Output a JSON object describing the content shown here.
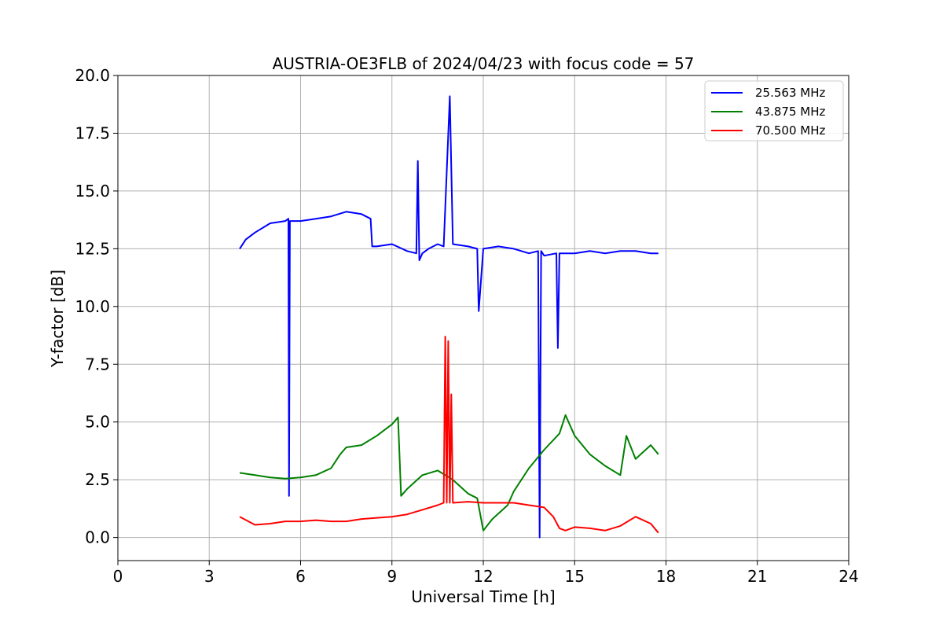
{
  "chart_data": {
    "type": "line",
    "title": "AUSTRIA-OE3FLB of 2024/04/23 with focus code = 57",
    "xlabel": "Universal Time [h]",
    "ylabel": "Y-factor [dB]",
    "xlim": [
      0,
      24
    ],
    "ylim": [
      -1.0,
      20.0
    ],
    "xticks": [
      0,
      3,
      6,
      9,
      12,
      15,
      18,
      21,
      24
    ],
    "xtick_labels": [
      "0",
      "3",
      "6",
      "9",
      "12",
      "15",
      "18",
      "21",
      "24"
    ],
    "yticks": [
      0.0,
      2.5,
      5.0,
      7.5,
      10.0,
      12.5,
      15.0,
      17.5,
      20.0
    ],
    "ytick_labels": [
      "0.0",
      "2.5",
      "5.0",
      "7.5",
      "10.0",
      "12.5",
      "15.0",
      "17.5",
      "20.0"
    ],
    "grid": true,
    "legend_position": "top-right",
    "series": [
      {
        "name": "25.563 MHz",
        "color": "#0000ff",
        "x": [
          4.0,
          4.2,
          4.5,
          5.0,
          5.5,
          5.6,
          5.62,
          5.65,
          6.0,
          6.5,
          7.0,
          7.5,
          8.0,
          8.3,
          8.35,
          8.5,
          9.0,
          9.5,
          9.8,
          9.85,
          9.9,
          10.0,
          10.2,
          10.5,
          10.7,
          10.9,
          11.0,
          11.5,
          11.8,
          11.85,
          12.0,
          12.5,
          13.0,
          13.5,
          13.8,
          13.85,
          13.9,
          14.0,
          14.4,
          14.45,
          14.5,
          15.0,
          15.5,
          16.0,
          16.5,
          17.0,
          17.5,
          17.75
        ],
        "y": [
          12.5,
          12.9,
          13.2,
          13.6,
          13.7,
          13.8,
          1.8,
          13.7,
          13.7,
          13.8,
          13.9,
          14.1,
          14.0,
          13.8,
          12.6,
          12.6,
          12.7,
          12.4,
          12.3,
          16.3,
          12.0,
          12.3,
          12.5,
          12.7,
          12.6,
          19.1,
          12.7,
          12.6,
          12.5,
          9.8,
          12.5,
          12.6,
          12.5,
          12.3,
          12.4,
          0.0,
          12.4,
          12.2,
          12.3,
          8.2,
          12.3,
          12.3,
          12.4,
          12.3,
          12.4,
          12.4,
          12.3,
          12.3
        ]
      },
      {
        "name": "43.875 MHz",
        "color": "#008000",
        "x": [
          4.0,
          4.5,
          5.0,
          5.5,
          6.0,
          6.5,
          7.0,
          7.3,
          7.5,
          8.0,
          8.5,
          9.0,
          9.2,
          9.3,
          9.5,
          10.0,
          10.5,
          11.0,
          11.5,
          11.8,
          12.0,
          12.3,
          12.8,
          13.0,
          13.5,
          14.0,
          14.5,
          14.7,
          15.0,
          15.5,
          16.0,
          16.5,
          16.7,
          17.0,
          17.5,
          17.75
        ],
        "y": [
          2.8,
          2.7,
          2.6,
          2.55,
          2.6,
          2.7,
          3.0,
          3.6,
          3.9,
          4.0,
          4.4,
          4.9,
          5.2,
          1.8,
          2.1,
          2.7,
          2.9,
          2.5,
          1.9,
          1.7,
          0.3,
          0.8,
          1.4,
          2.0,
          3.0,
          3.8,
          4.5,
          5.3,
          4.4,
          3.6,
          3.1,
          2.7,
          4.4,
          3.4,
          4.0,
          3.6
        ]
      },
      {
        "name": "70.500 MHz",
        "color": "#ff0000",
        "x": [
          4.0,
          4.5,
          5.0,
          5.5,
          6.0,
          6.5,
          7.0,
          7.5,
          8.0,
          8.5,
          9.0,
          9.5,
          10.0,
          10.5,
          10.7,
          10.75,
          10.8,
          10.85,
          10.9,
          10.95,
          11.0,
          11.5,
          12.0,
          12.5,
          13.0,
          13.5,
          14.0,
          14.3,
          14.5,
          14.7,
          15.0,
          15.5,
          16.0,
          16.5,
          17.0,
          17.5,
          17.75
        ],
        "y": [
          0.9,
          0.55,
          0.6,
          0.7,
          0.7,
          0.75,
          0.7,
          0.7,
          0.8,
          0.85,
          0.9,
          1.0,
          1.2,
          1.4,
          1.5,
          8.7,
          1.5,
          8.5,
          1.5,
          6.2,
          1.5,
          1.55,
          1.5,
          1.5,
          1.5,
          1.4,
          1.3,
          0.9,
          0.4,
          0.3,
          0.45,
          0.4,
          0.3,
          0.5,
          0.9,
          0.6,
          0.2
        ]
      }
    ]
  }
}
